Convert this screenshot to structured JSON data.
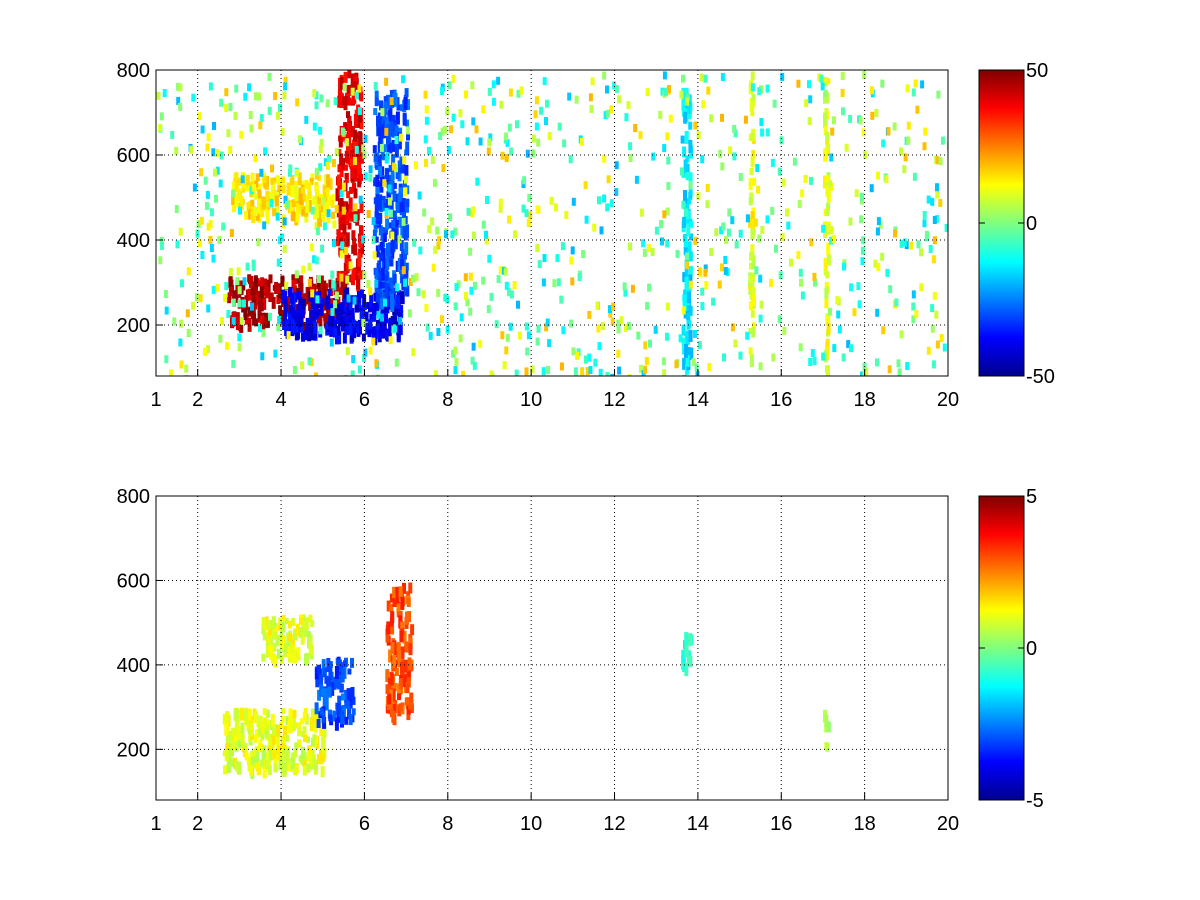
{
  "chart_data": [
    {
      "type": "heatmap",
      "title": "",
      "xlabel": "",
      "ylabel": "",
      "xlim": [
        1,
        20
      ],
      "ylim": [
        80,
        800
      ],
      "x_ticks": [
        1,
        2,
        4,
        6,
        8,
        10,
        12,
        14,
        16,
        18,
        20
      ],
      "y_ticks": [
        200,
        400,
        600,
        800
      ],
      "grid": true,
      "colormap": "jet",
      "colorbar": {
        "limits": [
          -50,
          50
        ],
        "ticks": [
          -50,
          0,
          50
        ]
      },
      "features": [
        {
          "x": [
            2.7,
            5.6
          ],
          "y": [
            205,
            320
          ],
          "value": 45,
          "label": "lower positive ridge"
        },
        {
          "x": [
            5.3,
            5.9
          ],
          "y": [
            300,
            800
          ],
          "value": 40,
          "label": "vertical positive ridge"
        },
        {
          "x": [
            4.0,
            6.9
          ],
          "y": [
            180,
            290
          ],
          "value": -40,
          "label": "lower negative ridge"
        },
        {
          "x": [
            6.2,
            7.0
          ],
          "y": [
            260,
            760
          ],
          "value": -30,
          "label": "vertical negative ridge"
        },
        {
          "x": [
            2.8,
            5.2
          ],
          "y": [
            460,
            560
          ],
          "value": 15,
          "label": "upper weak band"
        },
        {
          "x": [
            13.6,
            13.8
          ],
          "y": [
            80,
            760
          ],
          "value": -15,
          "label": "stripe at 13.7"
        },
        {
          "x": [
            15.2,
            15.3
          ],
          "y": [
            80,
            800
          ],
          "value": 10,
          "label": "stripe at 15.3"
        },
        {
          "x": [
            17.0,
            17.1
          ],
          "y": [
            80,
            800
          ],
          "value": 10,
          "label": "stripe at 17"
        }
      ]
    },
    {
      "type": "heatmap",
      "title": "",
      "xlabel": "",
      "ylabel": "",
      "xlim": [
        1,
        20
      ],
      "ylim": [
        80,
        800
      ],
      "x_ticks": [
        1,
        2,
        4,
        6,
        8,
        10,
        12,
        14,
        16,
        18,
        20
      ],
      "y_ticks": [
        200,
        400,
        600,
        800
      ],
      "grid": true,
      "colormap": "jet",
      "colorbar": {
        "limits": [
          -5,
          5
        ],
        "ticks": [
          -5,
          0,
          5
        ]
      },
      "features": [
        {
          "x": [
            2.6,
            5.0
          ],
          "y": [
            160,
            300
          ],
          "value": 1,
          "label": "lower band"
        },
        {
          "x": [
            4.8,
            5.7
          ],
          "y": [
            270,
            420
          ],
          "value": -3,
          "label": "negative patch"
        },
        {
          "x": [
            6.5,
            7.1
          ],
          "y": [
            280,
            600
          ],
          "value": 3,
          "label": "positive edge"
        },
        {
          "x": [
            3.5,
            4.8
          ],
          "y": [
            420,
            520
          ],
          "value": 1,
          "label": "upper weak band"
        },
        {
          "x": [
            13.6,
            13.8
          ],
          "y": [
            395,
            500
          ],
          "value": -1,
          "label": "short stripe at 13.7"
        },
        {
          "x": [
            17.0,
            17.1
          ],
          "y": [
            210,
            300
          ],
          "value": 0.5,
          "label": "short stripe at 17"
        }
      ]
    }
  ]
}
